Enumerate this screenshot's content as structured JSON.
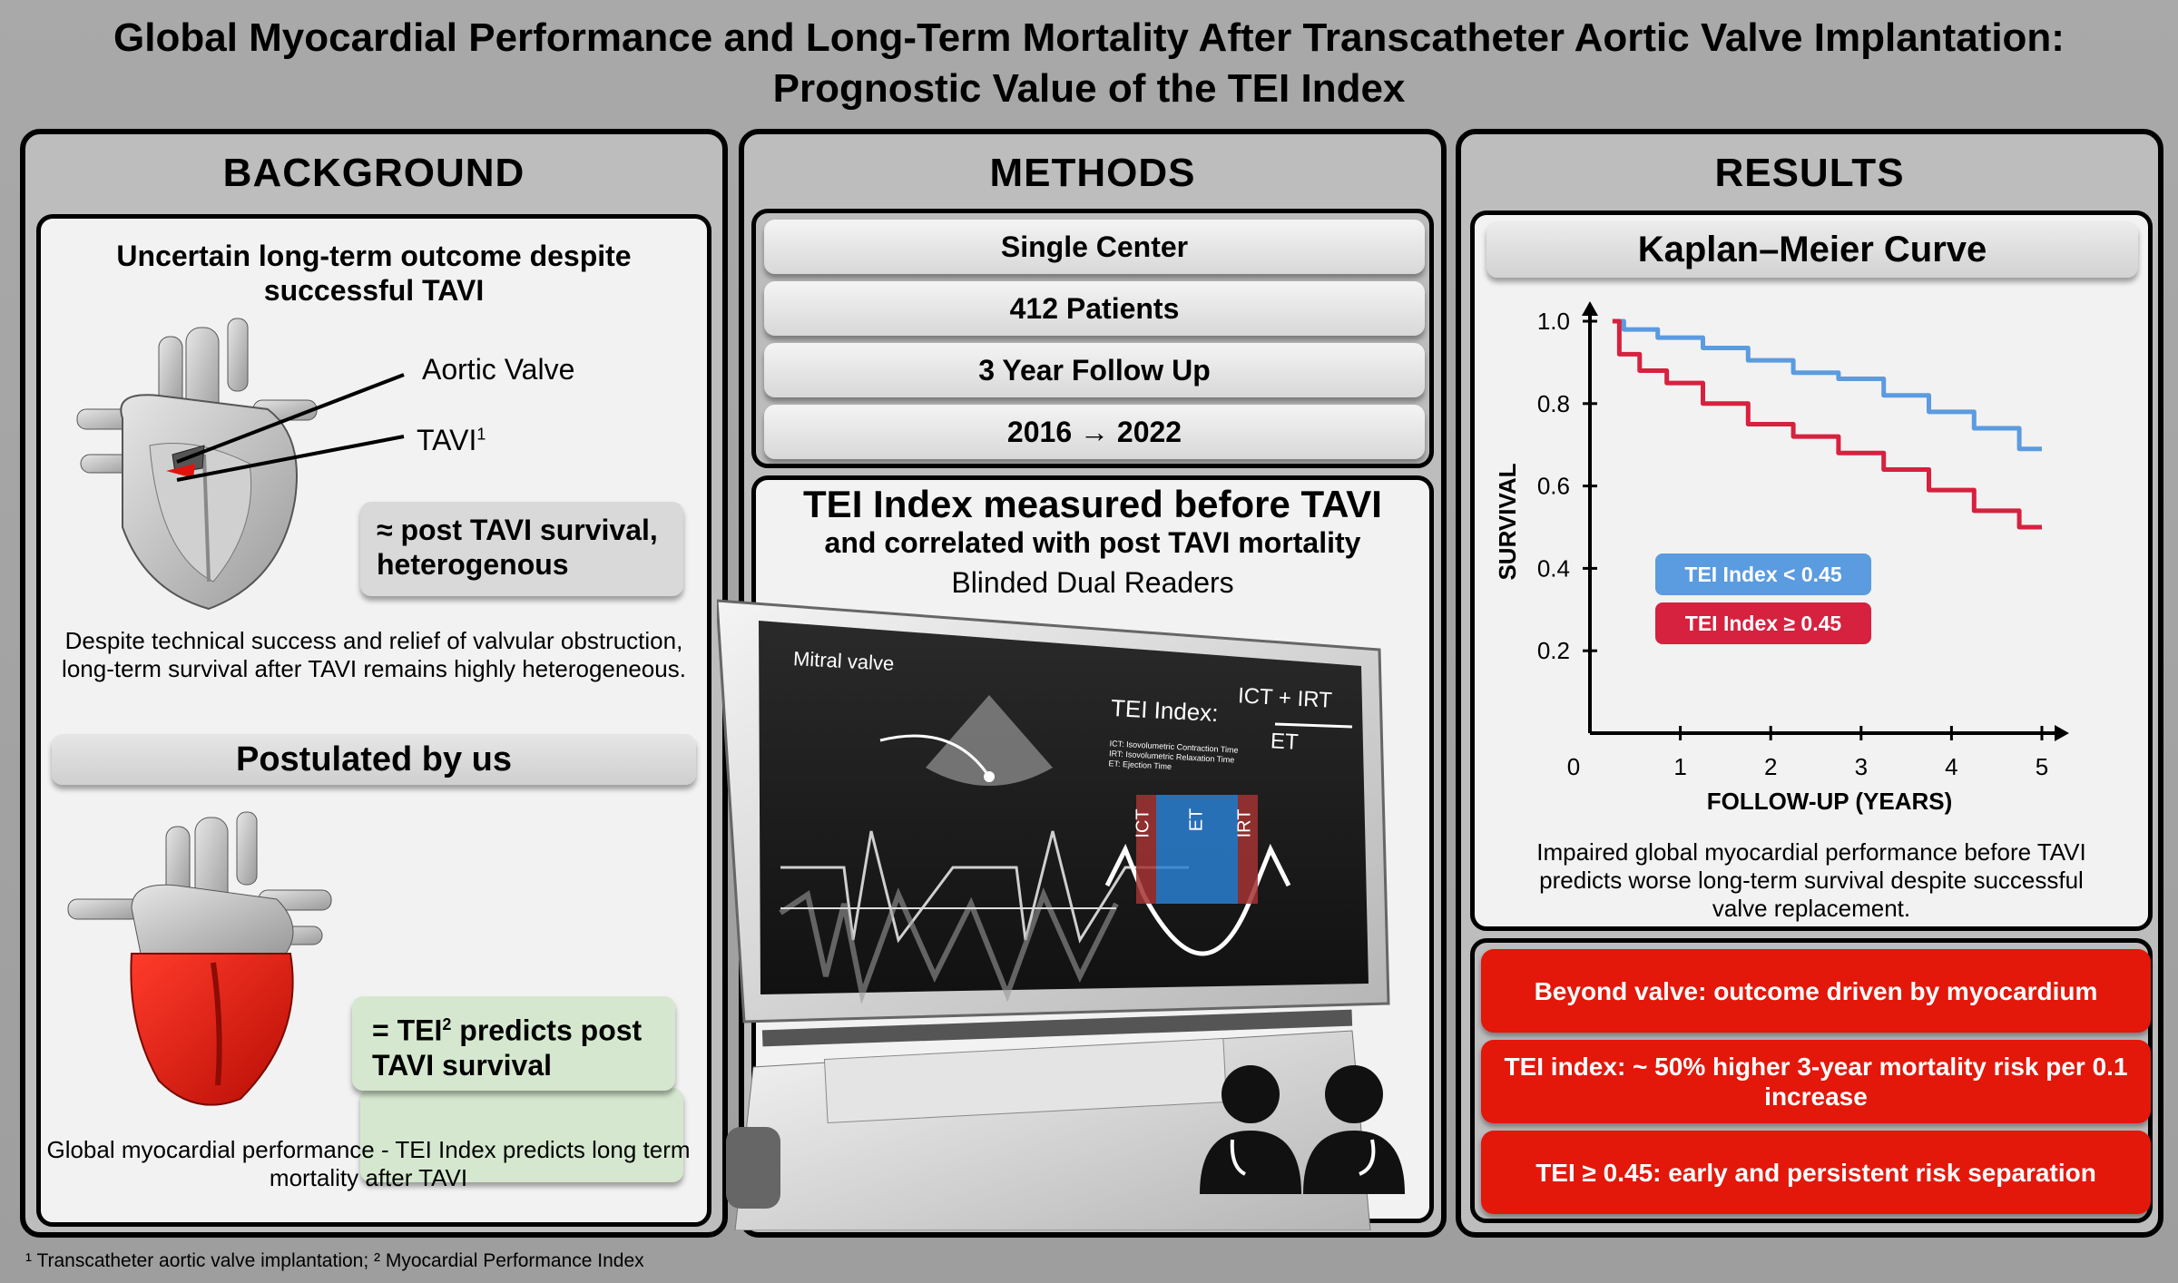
{
  "title": {
    "line1": "Global Myocardial Performance and Long-Term Mortality After Transcatheter Aortic Valve Implantation:",
    "line2": "Prognostic Value of the TEI Index"
  },
  "background": {
    "heading": "BACKGROUND",
    "subtitle_line1": "Uncertain long-term outcome despite",
    "subtitle_line2": "successful TAVI",
    "label_valve": "Aortic Valve",
    "label_tavi": "TAVI",
    "label_tavi_sup": "1",
    "survival_box_line1": "≈ post TAVI survival,",
    "survival_box_line2": "heterogenous",
    "description_line1": "Despite technical success and relief of valvular obstruction,",
    "description_line2": "long-term survival after TAVI remains highly heterogeneous.",
    "postulated_heading": "Postulated by us",
    "tei_box_line1_pre": "= TEI",
    "tei_box_sup": "2",
    "tei_box_line1_post": " predicts post",
    "tei_box_line2": "TAVI survival",
    "conclusion_line1": "Global myocardial performance - TEI Index predicts long term",
    "conclusion_line2": "mortality after TAVI"
  },
  "methods": {
    "heading": "METHODS",
    "items": [
      "Single Center",
      "412 Patients",
      "3 Year Follow Up",
      "2016 → 2022"
    ],
    "tei_heading": "TEI Index measured before TAVI",
    "tei_subheading": "and correlated with post TAVI mortality",
    "readers": "Blinded Dual Readers",
    "screen": {
      "mitral_label": "Mitral valve",
      "tei_label": "TEI Index:",
      "numerator": "ICT + IRT",
      "denominator": "ET",
      "legend_ict": "ICT: Isovolumetric Contraction Time",
      "legend_irt": "IRT: Isovolumetric Relaxation Time",
      "legend_et": "ET: Ejection Time",
      "seg_ict": "ICT",
      "seg_et": "ET",
      "seg_irt": "IRT"
    }
  },
  "results": {
    "heading": "RESULTS",
    "km_heading": "Kaplan–Meier Curve",
    "caption_line1": "Impaired global myocardial performance before TAVI",
    "caption_line2": "predicts worse long-term survival despite successful",
    "caption_line3": "valve replacement.",
    "findings": [
      "Beyond valve: outcome driven by myocardium",
      "TEI index: ~ 50% higher 3-year mortality risk per 0.1 increase",
      "TEI ≥ 0.45: early and persistent risk separation"
    ]
  },
  "footnote": "¹ Transcatheter aortic valve implantation; ² Myocardial Performance Index",
  "colors": {
    "low_tei": "#5b9be0",
    "high_tei": "#d6213f",
    "red_pill": "#e3170a",
    "survival_box": "#d9d9d9",
    "tei_box": "#d5e8cf"
  },
  "chart_data": {
    "type": "line",
    "title": "",
    "xlabel": "FOLLOW-UP (YEARS)",
    "ylabel": "SURVIVAL",
    "xlim": [
      0,
      5
    ],
    "ylim": [
      0,
      1.0
    ],
    "x_ticks": [
      "0",
      "1",
      "2",
      "3",
      "4",
      "5"
    ],
    "y_ticks": [
      "0.2",
      "0.4",
      "0.6",
      "0.8",
      "1.0"
    ],
    "legend_position": "left",
    "series": [
      {
        "name": "TEI Index < 0.45",
        "color": "#5b9be0",
        "x": [
          0.25,
          0.5,
          1.0,
          1.5,
          2.0,
          2.5,
          3.0,
          3.5,
          4.0,
          4.5,
          5.0
        ],
        "y": [
          1.0,
          0.98,
          0.96,
          0.935,
          0.905,
          0.875,
          0.86,
          0.82,
          0.78,
          0.74,
          0.69
        ]
      },
      {
        "name": "TEI Index ≥ 0.45",
        "color": "#d6213f",
        "x": [
          0.25,
          0.4,
          0.7,
          1.0,
          1.5,
          2.0,
          2.5,
          3.0,
          3.5,
          4.0,
          4.5,
          5.0
        ],
        "y": [
          1.0,
          0.92,
          0.88,
          0.85,
          0.8,
          0.75,
          0.72,
          0.68,
          0.64,
          0.59,
          0.54,
          0.5
        ]
      }
    ]
  }
}
